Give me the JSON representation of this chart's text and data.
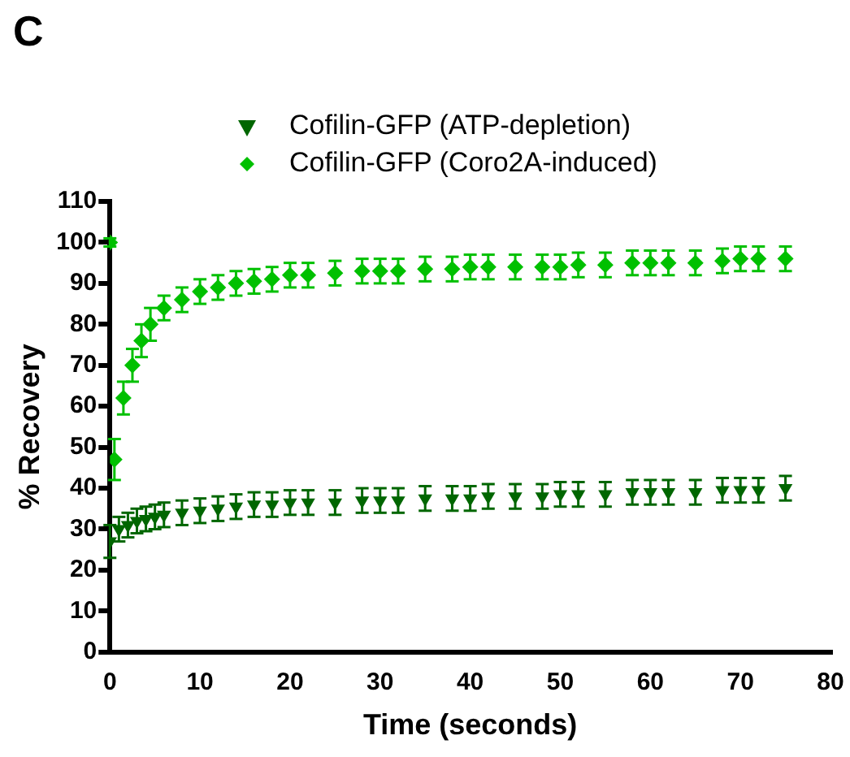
{
  "chart_data": {
    "type": "scatter",
    "annotations": [
      "C"
    ],
    "xlabel": "Time (seconds)",
    "ylabel": "% Recovery",
    "legend": "top",
    "grid": false,
    "xlim": [
      0,
      80
    ],
    "xticks": [
      0,
      10,
      20,
      30,
      40,
      50,
      60,
      70,
      80
    ],
    "ylim": [
      0,
      110
    ],
    "yticks": [
      0,
      10,
      20,
      30,
      40,
      50,
      60,
      70,
      80,
      90,
      100,
      110
    ],
    "series": [
      {
        "name": "Cofilin-GFP (ATP-depletion)",
        "color": "#006600",
        "marker": "triangle",
        "x": [
          0,
          1,
          2,
          3,
          4,
          5,
          6,
          8,
          10,
          12,
          14,
          16,
          18,
          20,
          22,
          25,
          28,
          30,
          32,
          35,
          38,
          40,
          42,
          45,
          48,
          50,
          52,
          55,
          58,
          60,
          62,
          65,
          68,
          70,
          72,
          75
        ],
        "values": [
          27,
          30,
          31,
          32,
          32.5,
          33,
          33.5,
          34,
          34.5,
          35,
          35.5,
          36,
          36,
          36.5,
          36.5,
          36.5,
          37,
          37,
          37,
          37.5,
          37.5,
          37.5,
          38,
          38,
          38,
          38.5,
          38.5,
          38.5,
          39,
          39,
          39,
          39,
          39.5,
          39.5,
          39.5,
          40
        ],
        "errors": [
          4,
          3,
          3,
          3,
          3,
          3,
          3,
          3,
          3,
          3,
          3,
          3,
          3,
          3,
          3,
          3,
          3,
          3,
          3,
          3,
          3,
          3,
          3,
          3,
          3,
          3,
          3,
          3,
          3,
          3,
          3,
          3,
          3,
          3,
          3,
          3
        ]
      },
      {
        "name": "Cofilin-GFP (Coro2A-induced)",
        "color": "#00c000",
        "marker": "diamond",
        "x": [
          0,
          0.5,
          1.5,
          2.5,
          3.5,
          4.5,
          6,
          8,
          10,
          12,
          14,
          16,
          18,
          20,
          22,
          25,
          28,
          30,
          32,
          35,
          38,
          40,
          42,
          45,
          48,
          50,
          52,
          55,
          58,
          60,
          62,
          65,
          68,
          70,
          72,
          75
        ],
        "values": [
          100,
          47,
          62,
          70,
          76,
          80,
          84,
          86,
          88,
          89,
          90,
          90.5,
          91,
          92,
          92,
          92.5,
          93,
          93,
          93,
          93.5,
          93.5,
          94,
          94,
          94,
          94,
          94,
          94.5,
          94.5,
          95,
          95,
          95,
          95,
          95.5,
          96,
          96,
          96
        ],
        "errors": [
          1,
          5,
          4,
          4,
          4,
          4,
          3,
          3,
          3,
          3,
          3,
          3,
          3,
          3,
          3,
          3,
          3,
          3,
          3,
          3,
          3,
          3,
          3,
          3,
          3,
          3,
          3,
          3,
          3,
          3,
          3,
          3,
          3,
          3,
          3,
          3
        ]
      }
    ]
  }
}
